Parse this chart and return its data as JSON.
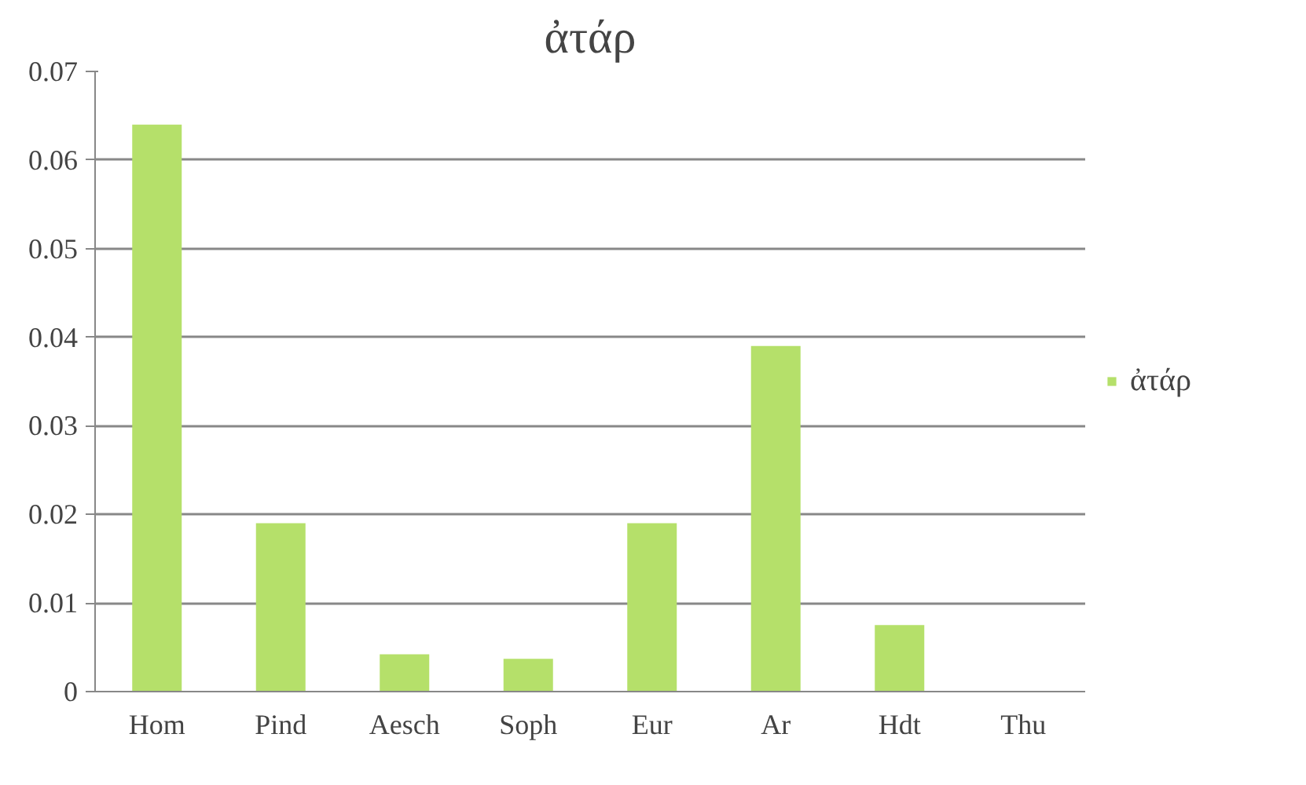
{
  "chart_data": {
    "type": "bar",
    "title": "ἀτάρ",
    "categories": [
      "Hom",
      "Pind",
      "Aesch",
      "Soph",
      "Eur",
      "Ar",
      "Hdt",
      "Thu"
    ],
    "series": [
      {
        "name": "ἀτάρ",
        "color": "#b5e06a",
        "values": [
          0.064,
          0.019,
          0.0042,
          0.0037,
          0.019,
          0.039,
          0.0075,
          0
        ]
      }
    ],
    "ylim": [
      0,
      0.07
    ],
    "yticks": [
      0,
      0.01,
      0.02,
      0.03,
      0.04,
      0.05,
      0.06,
      0.07
    ],
    "grid": "y",
    "legend": "right"
  }
}
